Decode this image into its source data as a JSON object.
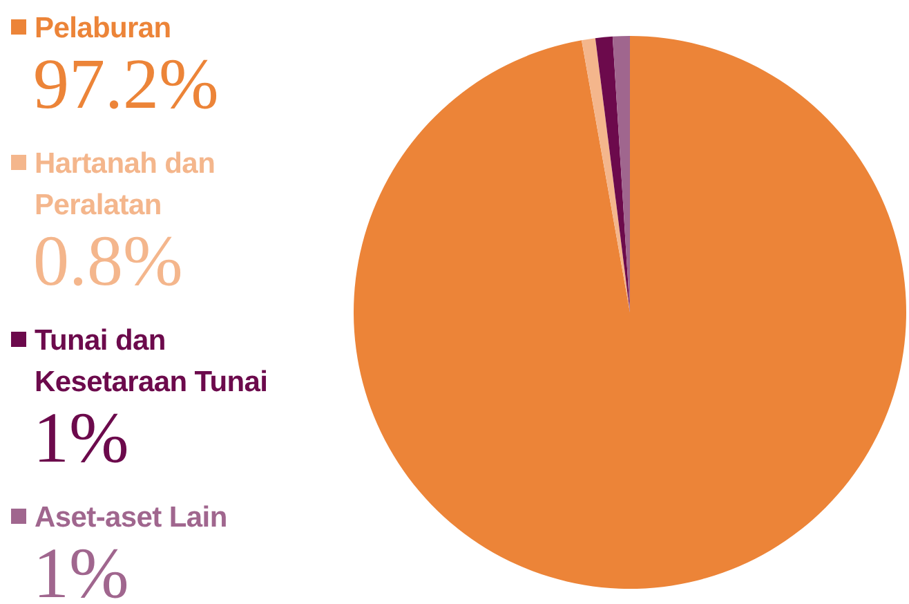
{
  "chart_data": {
    "type": "pie",
    "categories": [
      "Pelaburan",
      "Hartanah dan Peralatan",
      "Tunai dan Kesetaraan Tunai",
      "Aset-aset Lain"
    ],
    "values": [
      97.2,
      0.8,
      1,
      1
    ],
    "colors": [
      "#ec8438",
      "#f4b68c",
      "#6c0a4c",
      "#a0668e"
    ],
    "value_labels": [
      "97.2%",
      "0.8%",
      "1%",
      "1%"
    ],
    "legend": "left"
  }
}
